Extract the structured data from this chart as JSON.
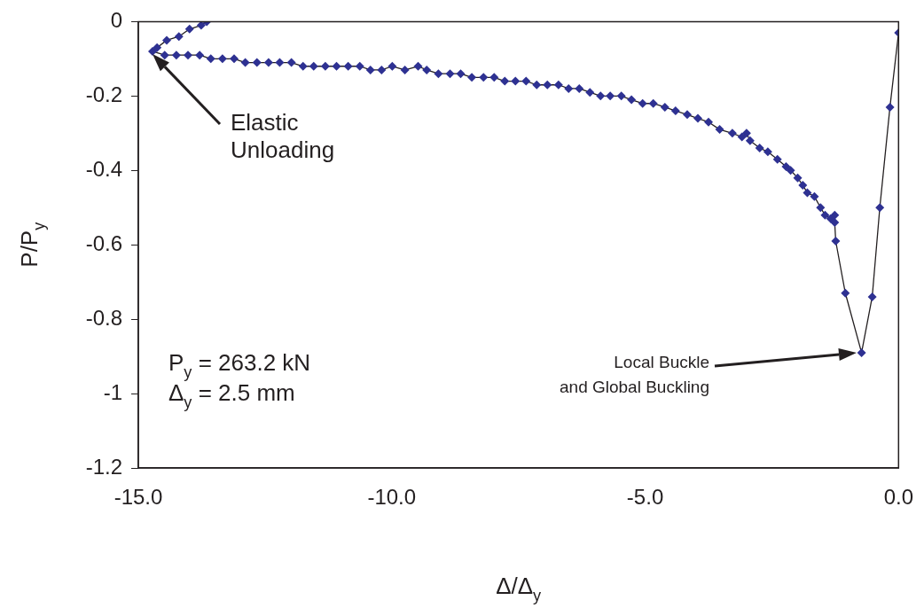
{
  "chart_data": {
    "type": "line",
    "xlabel": "Δ/Δ$_{y}$",
    "ylabel": "P/P$_{y}$",
    "xlim": [
      -15,
      0
    ],
    "ylim": [
      -1.2,
      0
    ],
    "xticks": [
      {
        "value": -15,
        "label": "-15.0"
      },
      {
        "value": -10,
        "label": "-10.0"
      },
      {
        "value": -5,
        "label": "-5.0"
      },
      {
        "value": 0,
        "label": "0.0"
      }
    ],
    "yticks": [
      -1.2,
      -1,
      -0.8,
      -0.6,
      -0.4,
      -0.2,
      0
    ],
    "grid": false,
    "legend": false,
    "marker": "diamond",
    "line_style": "solid",
    "series": [
      {
        "color": "#2e3192",
        "x": [
          0,
          -0.17,
          -0.37,
          -0.52,
          -0.73,
          -1.05,
          -1.24,
          -1.26,
          -1.26,
          -1.34,
          -1.45,
          -1.54,
          -1.66,
          -1.8,
          -1.89,
          -1.99,
          -2.13,
          -2.22,
          -2.39,
          -2.58,
          -2.74,
          -2.93,
          -3.0,
          -3.09,
          -3.28,
          -3.53,
          -3.75,
          -3.96,
          -4.17,
          -4.4,
          -4.61,
          -4.84,
          -5.05,
          -5.27,
          -5.47,
          -5.69,
          -5.88,
          -6.09,
          -6.3,
          -6.51,
          -6.71,
          -6.93,
          -7.14,
          -7.35,
          -7.56,
          -7.77,
          -7.98,
          -8.19,
          -8.42,
          -8.64,
          -8.85,
          -9.08,
          -9.31,
          -9.48,
          -9.74,
          -9.99,
          -10.2,
          -10.42,
          -10.63,
          -10.86,
          -11.09,
          -11.31,
          -11.54,
          -11.75,
          -11.98,
          -12.21,
          -12.43,
          -12.66,
          -12.89,
          -13.11,
          -13.34,
          -13.57,
          -13.79,
          -14.02,
          -14.25,
          -14.48,
          -14.72,
          -14.63,
          -14.44,
          -14.2,
          -13.99,
          -13.76,
          -13.65
        ],
        "values": [
          -0.03,
          -0.23,
          -0.5,
          -0.74,
          -0.89,
          -0.73,
          -0.59,
          -0.54,
          -0.52,
          -0.53,
          -0.52,
          -0.5,
          -0.47,
          -0.46,
          -0.44,
          -0.42,
          -0.4,
          -0.39,
          -0.37,
          -0.35,
          -0.34,
          -0.32,
          -0.3,
          -0.31,
          -0.3,
          -0.29,
          -0.27,
          -0.26,
          -0.25,
          -0.24,
          -0.23,
          -0.22,
          -0.22,
          -0.21,
          -0.2,
          -0.2,
          -0.2,
          -0.19,
          -0.18,
          -0.18,
          -0.17,
          -0.17,
          -0.17,
          -0.16,
          -0.16,
          -0.16,
          -0.15,
          -0.15,
          -0.15,
          -0.14,
          -0.14,
          -0.14,
          -0.13,
          -0.12,
          -0.13,
          -0.12,
          -0.13,
          -0.13,
          -0.12,
          -0.12,
          -0.12,
          -0.12,
          -0.12,
          -0.12,
          -0.11,
          -0.11,
          -0.11,
          -0.11,
          -0.11,
          -0.1,
          -0.1,
          -0.1,
          -0.09,
          -0.09,
          -0.09,
          -0.09,
          -0.08,
          -0.07,
          -0.05,
          -0.04,
          -0.02,
          -0.01,
          0
        ]
      }
    ],
    "annotations": [
      "Elastic\nUnloading",
      "Local Buckle\nand Global Buckling",
      "P$_{y}$ = 263.2 kN",
      "Δ$_{y}$ = 2.5 mm"
    ]
  }
}
